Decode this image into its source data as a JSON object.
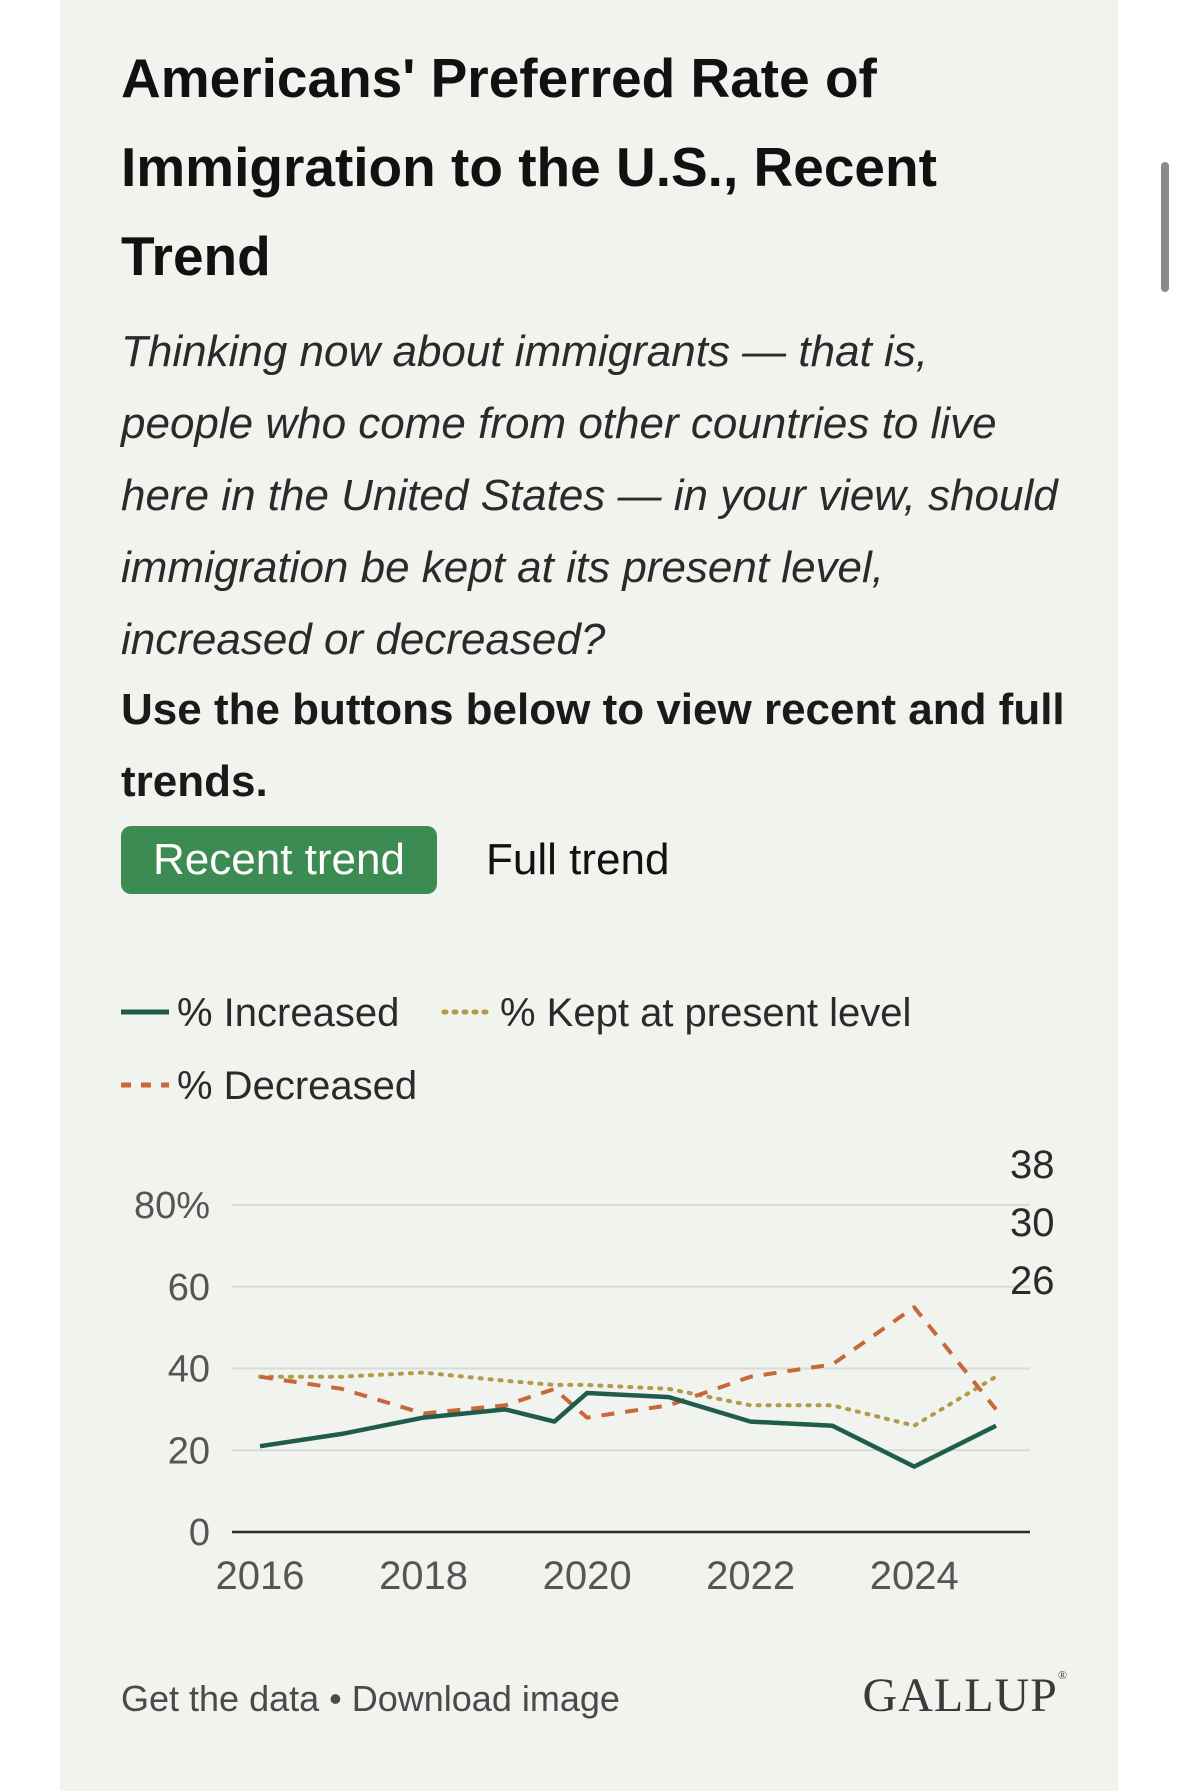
{
  "header": {
    "title": "Americans' Preferred Rate of Immigration to the U.S., Recent Trend",
    "subtitle": "Thinking now about immigrants — that is, people who come from other countries to live here in the United States — in your view, should immigration be kept at its present level, increased or decreased?",
    "instruction": "Use the buttons below to view recent and full trends."
  },
  "buttons": {
    "recent": "Recent trend",
    "full": "Full trend"
  },
  "footer": {
    "get_data": "Get the data",
    "separator": " • ",
    "download": "Download image",
    "logo": "GALLUP"
  },
  "colors": {
    "increased": "#1f5c4c",
    "kept": "#b39a4a",
    "decreased": "#c8673a",
    "accent": "#3c8b52",
    "card": "#f0f3ee"
  },
  "chart_data": {
    "type": "line",
    "title": "Americans' Preferred Rate of Immigration to the U.S., Recent Trend",
    "xlabel": "",
    "ylabel": "",
    "xlim": [
      2016,
      2025
    ],
    "ylim": [
      0,
      80
    ],
    "yticks": [
      0,
      20,
      40,
      60,
      80
    ],
    "ytick_labels": [
      "0",
      "20",
      "40",
      "60",
      "80%"
    ],
    "xticks": [
      2016,
      2018,
      2020,
      2022,
      2024
    ],
    "xtick_labels": [
      "2016",
      "2018",
      "2020",
      "2022",
      "2024"
    ],
    "grid": true,
    "legend_position": "top",
    "series": [
      {
        "key": "increased",
        "name": "% Increased",
        "style": "solid",
        "x": [
          2016,
          2017,
          2018,
          2019,
          2019.6,
          2020,
          2021,
          2022,
          2023,
          2024,
          2025
        ],
        "values": [
          21,
          24,
          28,
          30,
          27,
          34,
          33,
          27,
          26,
          16,
          26
        ],
        "end_label": "26"
      },
      {
        "key": "kept",
        "name": "% Kept at present level",
        "style": "dotted",
        "x": [
          2016,
          2017,
          2018,
          2019,
          2019.6,
          2020,
          2021,
          2022,
          2023,
          2024,
          2025
        ],
        "values": [
          38,
          38,
          39,
          37,
          36,
          36,
          35,
          31,
          31,
          26,
          38
        ],
        "end_label": "38"
      },
      {
        "key": "decreased",
        "name": "% Decreased",
        "style": "dashed",
        "x": [
          2016,
          2017,
          2018,
          2019,
          2019.6,
          2020,
          2021,
          2022,
          2023,
          2024,
          2025
        ],
        "values": [
          38,
          35,
          29,
          31,
          35,
          28,
          31,
          38,
          41,
          55,
          30
        ],
        "end_label": "30"
      }
    ]
  }
}
